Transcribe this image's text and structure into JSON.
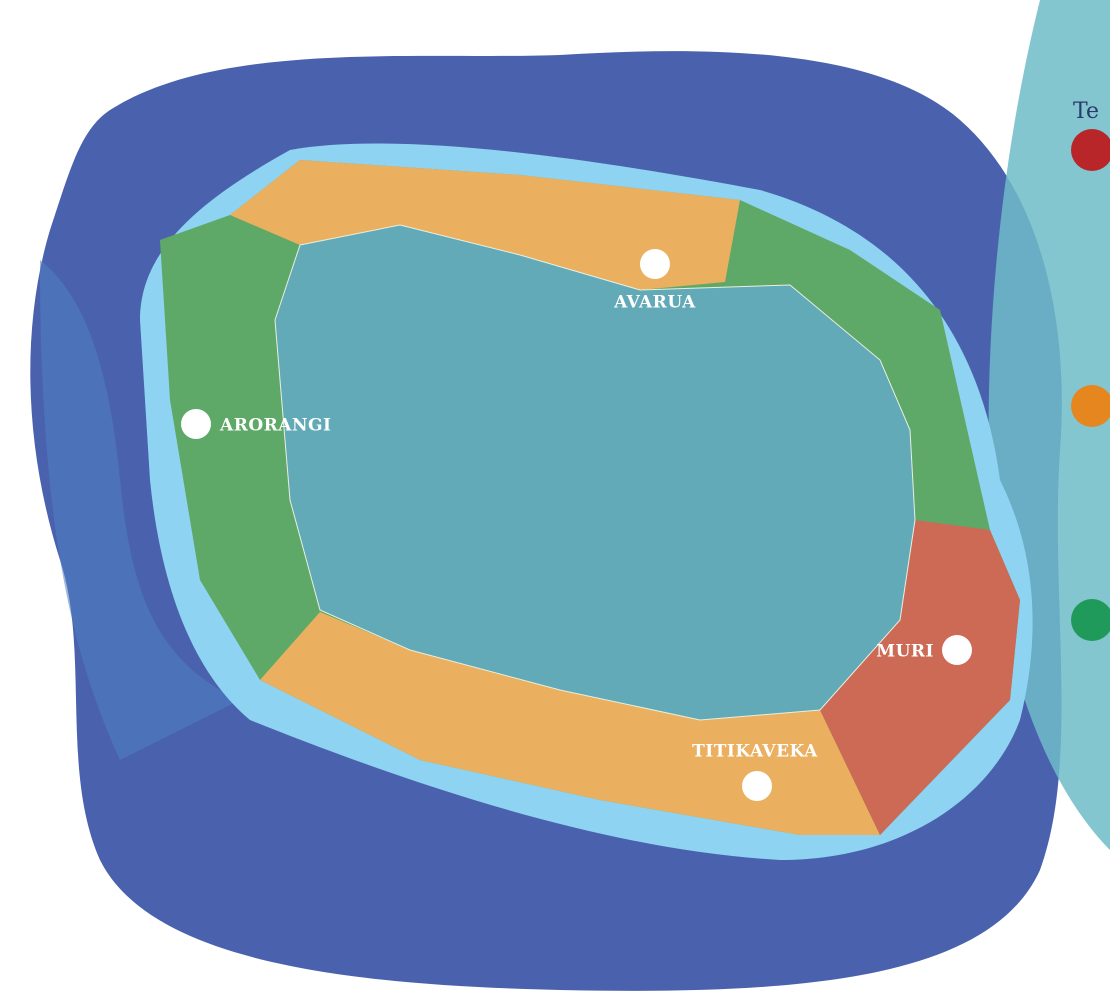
{
  "places": [
    {
      "label": "AVARUA"
    },
    {
      "label": "ARORANGI"
    },
    {
      "label": "MURI"
    },
    {
      "label": "TITIKAVEKA"
    }
  ],
  "legend": {
    "title": "Te"
  }
}
